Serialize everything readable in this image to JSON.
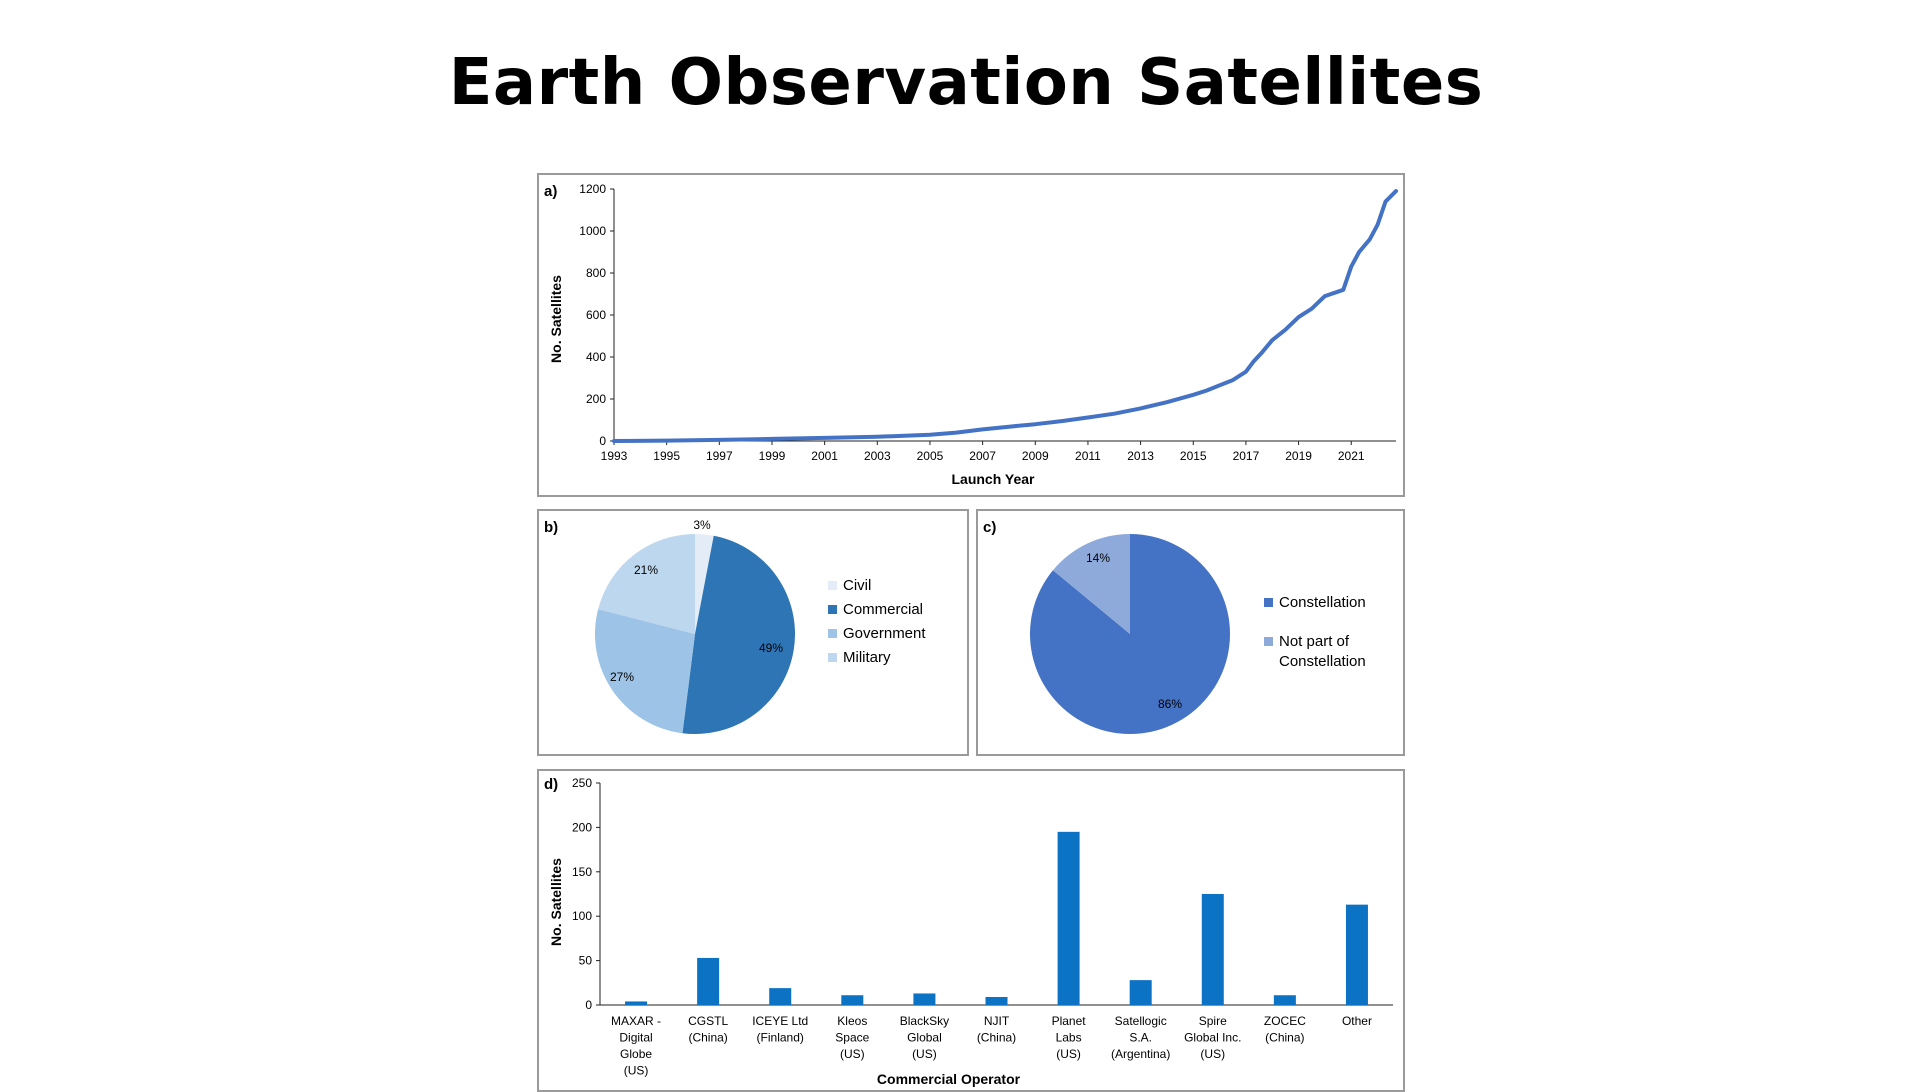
{
  "page": {
    "title": "Earth Observation Satellites",
    "colors": {
      "line": "#4472c4",
      "bar": "#0b72c4",
      "axis": "#222222",
      "frame": "#9a9a9a"
    }
  },
  "chart_data": [
    {
      "panel_label": "a)",
      "type": "line",
      "title": "",
      "xlabel": "Launch Year",
      "ylabel": "No. Satellites",
      "xlim": [
        1993,
        2022.7
      ],
      "ylim": [
        0,
        1200
      ],
      "xticks": [
        "1993",
        "1995",
        "1997",
        "1999",
        "2001",
        "2003",
        "2005",
        "2007",
        "2009",
        "2011",
        "2013",
        "2015",
        "2017",
        "2019",
        "2021"
      ],
      "yticks": [
        "0",
        "200",
        "400",
        "600",
        "800",
        "1000",
        "1200"
      ],
      "grid": false,
      "series": [
        {
          "x": [
            1993,
            1995,
            1997,
            1999,
            2001,
            2003,
            2005,
            2006,
            2007,
            2008,
            2009,
            2010,
            2011,
            2012,
            2013,
            2014,
            2015,
            2015.5,
            2016,
            2016.5,
            2017,
            2017.3,
            2017.6,
            2018,
            2018.5,
            2019,
            2019.5,
            2020,
            2020.7,
            2021,
            2021.3,
            2021.7,
            2022,
            2022.3,
            2022.7
          ],
          "y": [
            0,
            2,
            5,
            10,
            15,
            20,
            30,
            40,
            55,
            68,
            80,
            95,
            112,
            130,
            155,
            185,
            220,
            240,
            265,
            290,
            330,
            380,
            420,
            480,
            530,
            590,
            630,
            690,
            720,
            830,
            900,
            960,
            1030,
            1140,
            1190
          ]
        }
      ]
    },
    {
      "panel_label": "b)",
      "type": "pie",
      "title": "",
      "legend_position": "right",
      "slices": [
        {
          "label": "Civil",
          "value": 3,
          "display": "3%",
          "color": "#e3ecf7"
        },
        {
          "label": "Commercial",
          "value": 49,
          "display": "49%",
          "color": "#2e75b6"
        },
        {
          "label": "Government",
          "value": 27,
          "display": "27%",
          "color": "#9dc3e6"
        },
        {
          "label": "Military",
          "value": 21,
          "display": "21%",
          "color": "#bdd7ee"
        }
      ]
    },
    {
      "panel_label": "c)",
      "type": "pie",
      "title": "",
      "legend_position": "right",
      "slices": [
        {
          "label": "Constellation",
          "value": 86,
          "display": "86%",
          "color": "#4472c4"
        },
        {
          "label": "Not part of Constellation",
          "legend_lines": [
            "Not part of",
            "Constellation"
          ],
          "value": 14,
          "display": "14%",
          "color": "#8eaadb"
        }
      ]
    },
    {
      "panel_label": "d)",
      "type": "bar",
      "title": "",
      "xlabel": "Commercial Operator",
      "ylabel": "No. Satellites",
      "ylim": [
        0,
        250
      ],
      "yticks": [
        "0",
        "50",
        "100",
        "150",
        "200",
        "250"
      ],
      "grid": false,
      "categories": [
        [
          "MAXAR -",
          "Digital",
          "Globe",
          "(US)"
        ],
        [
          "CGSTL",
          "(China)"
        ],
        [
          "ICEYE Ltd",
          "(Finland)"
        ],
        [
          "Kleos",
          "Space",
          "(US)"
        ],
        [
          "BlackSky",
          "Global",
          "(US)"
        ],
        [
          "NJIT",
          "(China)"
        ],
        [
          "Planet",
          "Labs",
          "(US)"
        ],
        [
          "Satellogic",
          "S.A.",
          "(Argentina)"
        ],
        [
          "Spire",
          "Global Inc.",
          "(US)"
        ],
        [
          "ZOCEC",
          "(China)"
        ],
        [
          "Other"
        ]
      ],
      "values": [
        4,
        53,
        19,
        11,
        13,
        9,
        195,
        28,
        125,
        11,
        113
      ]
    }
  ]
}
